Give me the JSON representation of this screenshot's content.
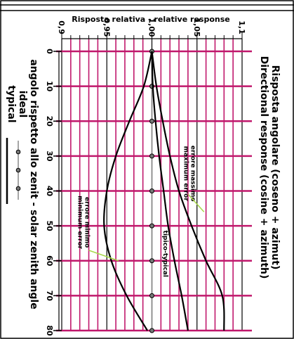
{
  "chart_data": {
    "type": "line",
    "title": "Risposta relativa - relative response",
    "right_title_lines": [
      "Risposta angolare (coseno + azimut)",
      "Directional response (cosine + azimuth)"
    ],
    "xlabel": "angolo rispetto allo zenit - solar zenith angle",
    "legend_lines": [
      "ideal",
      "typical"
    ],
    "angle_ticks": [
      0,
      10,
      20,
      30,
      40,
      50,
      60,
      70,
      80
    ],
    "response_ticks": [
      "0,9",
      "0,95",
      "1,00",
      "1,05",
      "1,1"
    ],
    "response_tick_values": [
      0.9,
      0.95,
      1.0,
      1.05,
      1.1
    ],
    "angle_range": [
      0,
      80
    ],
    "response_range": [
      0.9,
      1.1
    ],
    "grid": true,
    "colors": {
      "grid": "#c0186c",
      "line": "#000000",
      "accent": "#a6d84a",
      "ideal": "#888888"
    },
    "series": [
      {
        "name": "ideal",
        "angles": [
          0,
          10,
          20,
          30,
          40,
          50,
          60,
          70,
          80
        ],
        "values": [
          1.0,
          1.0,
          1.0,
          1.0,
          1.0,
          1.0,
          1.0,
          1.0,
          1.0
        ]
      },
      {
        "name": "typical",
        "angles": [
          0,
          10,
          20,
          30,
          40,
          50,
          60,
          70,
          80
        ],
        "values": [
          1.0,
          1.001,
          1.004,
          1.008,
          1.013,
          1.018,
          1.025,
          1.033,
          1.04
        ]
      },
      {
        "name": "errore massimo maximum error",
        "angles": [
          0,
          10,
          20,
          30,
          40,
          50,
          60,
          70,
          80
        ],
        "values": [
          1.0,
          1.005,
          1.012,
          1.02,
          1.03,
          1.044,
          1.06,
          1.078,
          1.08
        ]
      },
      {
        "name": "errore minimo minimum error",
        "angles": [
          0,
          10,
          20,
          30,
          40,
          50,
          60,
          70,
          80
        ],
        "values": [
          1.0,
          0.991,
          0.975,
          0.96,
          0.95,
          0.947,
          0.955,
          0.972,
          0.995
        ]
      }
    ],
    "annotations": [
      {
        "lines": [
          "errore massimo",
          "maximum error"
        ],
        "angle": 35
      },
      {
        "lines": [
          "errore minimo",
          "minimum error"
        ],
        "angle": 55
      },
      {
        "lines": [
          "tipico-typical"
        ],
        "angle": 58
      }
    ]
  }
}
